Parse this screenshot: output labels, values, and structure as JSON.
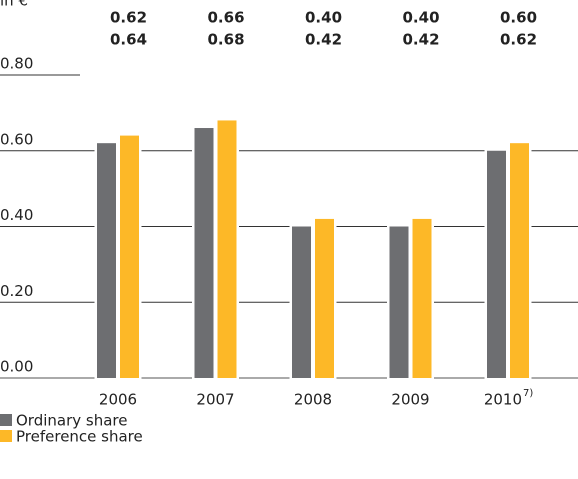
{
  "chart_data": {
    "type": "bar",
    "unit_label": "in €",
    "categories": [
      "2006",
      "2007",
      "2008",
      "2009",
      "2010"
    ],
    "category_marks": [
      null,
      null,
      null,
      null,
      "7)"
    ],
    "series": [
      {
        "name": "Ordinary share",
        "color": "#6d6e71",
        "values": [
          0.62,
          0.66,
          0.4,
          0.4,
          0.6
        ],
        "value_labels": [
          "0.62",
          "0.66",
          "0.40",
          "0.40",
          "0.60"
        ]
      },
      {
        "name": "Preference share",
        "color": "#fdb827",
        "values": [
          0.64,
          0.68,
          0.42,
          0.42,
          0.62
        ],
        "value_labels": [
          "0.64",
          "0.68",
          "0.42",
          "0.42",
          "0.62"
        ]
      }
    ],
    "ylim": [
      0,
      0.8
    ],
    "yticks": [
      {
        "value": 0,
        "label": "0.00"
      },
      {
        "value": 0.2,
        "label": "0.20"
      },
      {
        "value": 0.4,
        "label": "0.40"
      },
      {
        "value": 0.6,
        "label": "0.60"
      },
      {
        "value": 0.8,
        "label": "0.80"
      }
    ],
    "grid": true
  }
}
